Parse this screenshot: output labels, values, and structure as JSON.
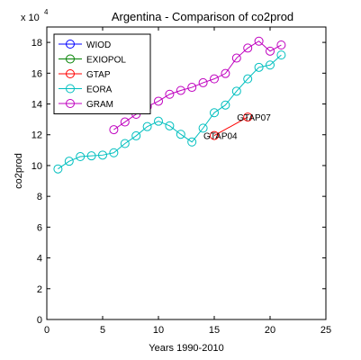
{
  "chart_data": {
    "type": "line",
    "title": "Argentina - Comparison of co2prod",
    "xlabel": "Years 1990-2010",
    "ylabel": "co2prod",
    "exponent_label": "x 10",
    "exponent_power": "4",
    "xlim": [
      0,
      25
    ],
    "ylim": [
      0,
      190000
    ],
    "x_ticks": [
      0,
      5,
      10,
      15,
      20,
      25
    ],
    "y_ticks": [
      0,
      20000,
      40000,
      60000,
      80000,
      100000,
      120000,
      140000,
      160000,
      180000
    ],
    "y_tick_labels": [
      "0",
      "2",
      "4",
      "6",
      "8",
      "10",
      "12",
      "14",
      "16",
      "18"
    ],
    "grid": false,
    "legend_position": "top-left",
    "series": [
      {
        "name": "WIOD",
        "color": "#0000ff",
        "x": [],
        "y": []
      },
      {
        "name": "EXIOPOL",
        "color": "#008000",
        "x": [],
        "y": []
      },
      {
        "name": "GTAP",
        "color": "#ff0000",
        "x": [
          15,
          18
        ],
        "y": [
          119500,
          131500
        ]
      },
      {
        "name": "EORA",
        "color": "#00bfbf",
        "x": [
          1,
          2,
          3,
          4,
          5,
          6,
          7,
          8,
          9,
          10,
          11,
          12,
          13,
          14,
          15,
          16,
          17,
          18,
          19,
          20,
          21
        ],
        "y": [
          97800,
          102800,
          105800,
          106300,
          106800,
          108300,
          114300,
          119300,
          125300,
          128800,
          125800,
          120300,
          115300,
          124300,
          134300,
          139300,
          148300,
          156300,
          163800,
          165300,
          171800
        ]
      },
      {
        "name": "GRAM",
        "color": "#bf00bf",
        "x": [
          6,
          7,
          8,
          9,
          10,
          11,
          12,
          13,
          14,
          15,
          16,
          17,
          18,
          19,
          20,
          21
        ],
        "y": [
          123300,
          128300,
          133300,
          138300,
          141800,
          146300,
          148800,
          150800,
          153800,
          156300,
          159800,
          169800,
          176300,
          180800,
          174300,
          178300
        ]
      }
    ],
    "annotations": [
      {
        "text": "GTAP04",
        "x": 15,
        "y": 119500
      },
      {
        "text": "GTAP07",
        "x": 18,
        "y": 131500
      }
    ]
  }
}
